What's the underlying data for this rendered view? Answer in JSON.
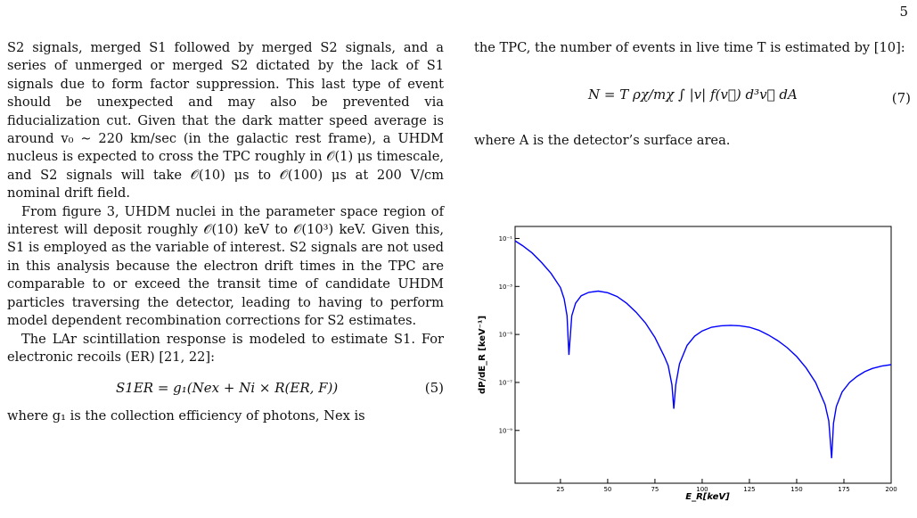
{
  "page_number": "5",
  "left_column": {
    "para1": "S2 signals, merged S1 followed by merged S2 signals, and a series of unmerged or merged S2 dictated by the lack of S1 signals due to form factor suppression. This last type of event should be unexpected and may also be prevented via fiducialization cut. Given that the dark matter speed average is around v₀ ∼ 220 km/sec (in the galactic rest frame), a UHDM nucleus is expected to cross the TPC roughly in 𝒪(1) μs timescale, and S2 signals will take 𝒪(10) μs to 𝒪(100) μs at 200 V/cm nominal drift field.",
    "para2": "From figure 3, UHDM nuclei in the parameter space region of interest will deposit roughly 𝒪(10) keV to 𝒪(10³) keV. Given this, S1 is employed as the variable of interest. S2 signals are not used in this analysis because the electron drift times in the TPC are comparable to or exceed the transit time of candidate UHDM particles traversing the detector, leading to having to perform model dependent recombination corrections for S2 estimates.",
    "para3": "The LAr scintillation response is modeled to estimate S1. For electronic recoils (ER) [21, 22]:",
    "eq5": "S1ER = g₁(Nex + Ni × R(ER, F))",
    "eq5_num": "(5)",
    "para4": "where g₁ is the collection efficiency of photons, Nex is"
  },
  "right_column": {
    "para1": "the TPC, the number of events in live time T is estimated by [10]:",
    "eq7": "N = T ρχ/mχ ∫ |v| f(v⃗) d³v⃗ dA",
    "eq7_num": "(7)",
    "para2": "where A is the detector’s surface area."
  },
  "chart_data": {
    "type": "line",
    "xlabel": "E_R[keV]",
    "ylabel": "dP/dE_R [keV⁻¹]",
    "x_ticks": [
      "25",
      "50",
      "75",
      "100",
      "125",
      "150",
      "175",
      "200"
    ],
    "y_ticks": [
      "10⁻¹",
      "10⁻³",
      "10⁻⁵",
      "10⁻⁷",
      "10⁻⁹"
    ],
    "xlim": [
      1,
      200
    ],
    "ylim_log10": [
      -11.2,
      -0.5
    ],
    "y_scale": "log",
    "line_color": "#0000ff",
    "x": [
      1,
      5,
      10,
      15,
      20,
      25,
      27,
      28.5,
      29.5,
      31,
      33,
      36,
      40,
      45,
      50,
      55,
      60,
      65,
      70,
      75,
      80,
      82,
      84,
      85,
      86,
      88,
      92,
      96,
      100,
      105,
      110,
      115,
      120,
      125,
      130,
      135,
      140,
      145,
      150,
      155,
      160,
      165,
      167,
      168.5,
      169.5,
      171,
      174,
      178,
      182,
      186,
      190,
      195,
      200
    ],
    "y": [
      0.08,
      0.05,
      0.025,
      0.01,
      0.0035,
      0.0009,
      0.0003,
      6e-05,
      1.4e-06,
      6e-05,
      0.0002,
      0.00041,
      0.00057,
      0.00064,
      0.00055,
      0.00038,
      0.0002,
      8.5e-05,
      3e-05,
      7.5e-06,
      1.2e-06,
      5e-07,
      8e-08,
      8e-09,
      8e-08,
      6e-07,
      3.5e-06,
      8.5e-06,
      1.4e-05,
      2e-05,
      2.3e-05,
      2.4e-05,
      2.3e-05,
      2e-05,
      1.5e-05,
      9.5e-06,
      5.5e-06,
      2.8e-06,
      1.2e-06,
      4e-07,
      1e-07,
      1.2e-08,
      2.5e-09,
      7e-11,
      2e-09,
      1e-08,
      4e-08,
      1e-07,
      1.8e-07,
      2.8e-07,
      3.8e-07,
      4.8e-07,
      5.5e-07
    ]
  }
}
